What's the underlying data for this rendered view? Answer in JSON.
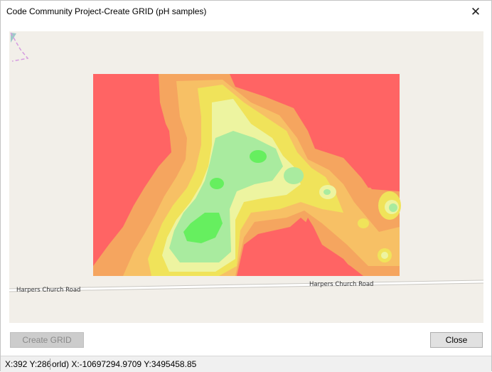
{
  "window": {
    "title": "Code Community Project-Create GRID (pH samples)",
    "close_glyph": "✕"
  },
  "map": {
    "roads": [
      {
        "label": "Harpers Church Road"
      },
      {
        "label": "Harpers Church Road"
      }
    ],
    "grid_colors": {
      "red": "#ff6464",
      "orange": "#f5a55f",
      "light_orange": "#f7c065",
      "yellow": "#f0e35a",
      "pale_yellow": "#edf4a0",
      "light_green": "#a9eb9f",
      "green": "#66ef5f"
    }
  },
  "buttons": {
    "create_grid": "Create GRID",
    "close": "Close"
  },
  "status": {
    "pixel_coords": "X:392 Y:286",
    "world_coords": "orld) X:-10697294.9709 Y:3495458.85"
  }
}
